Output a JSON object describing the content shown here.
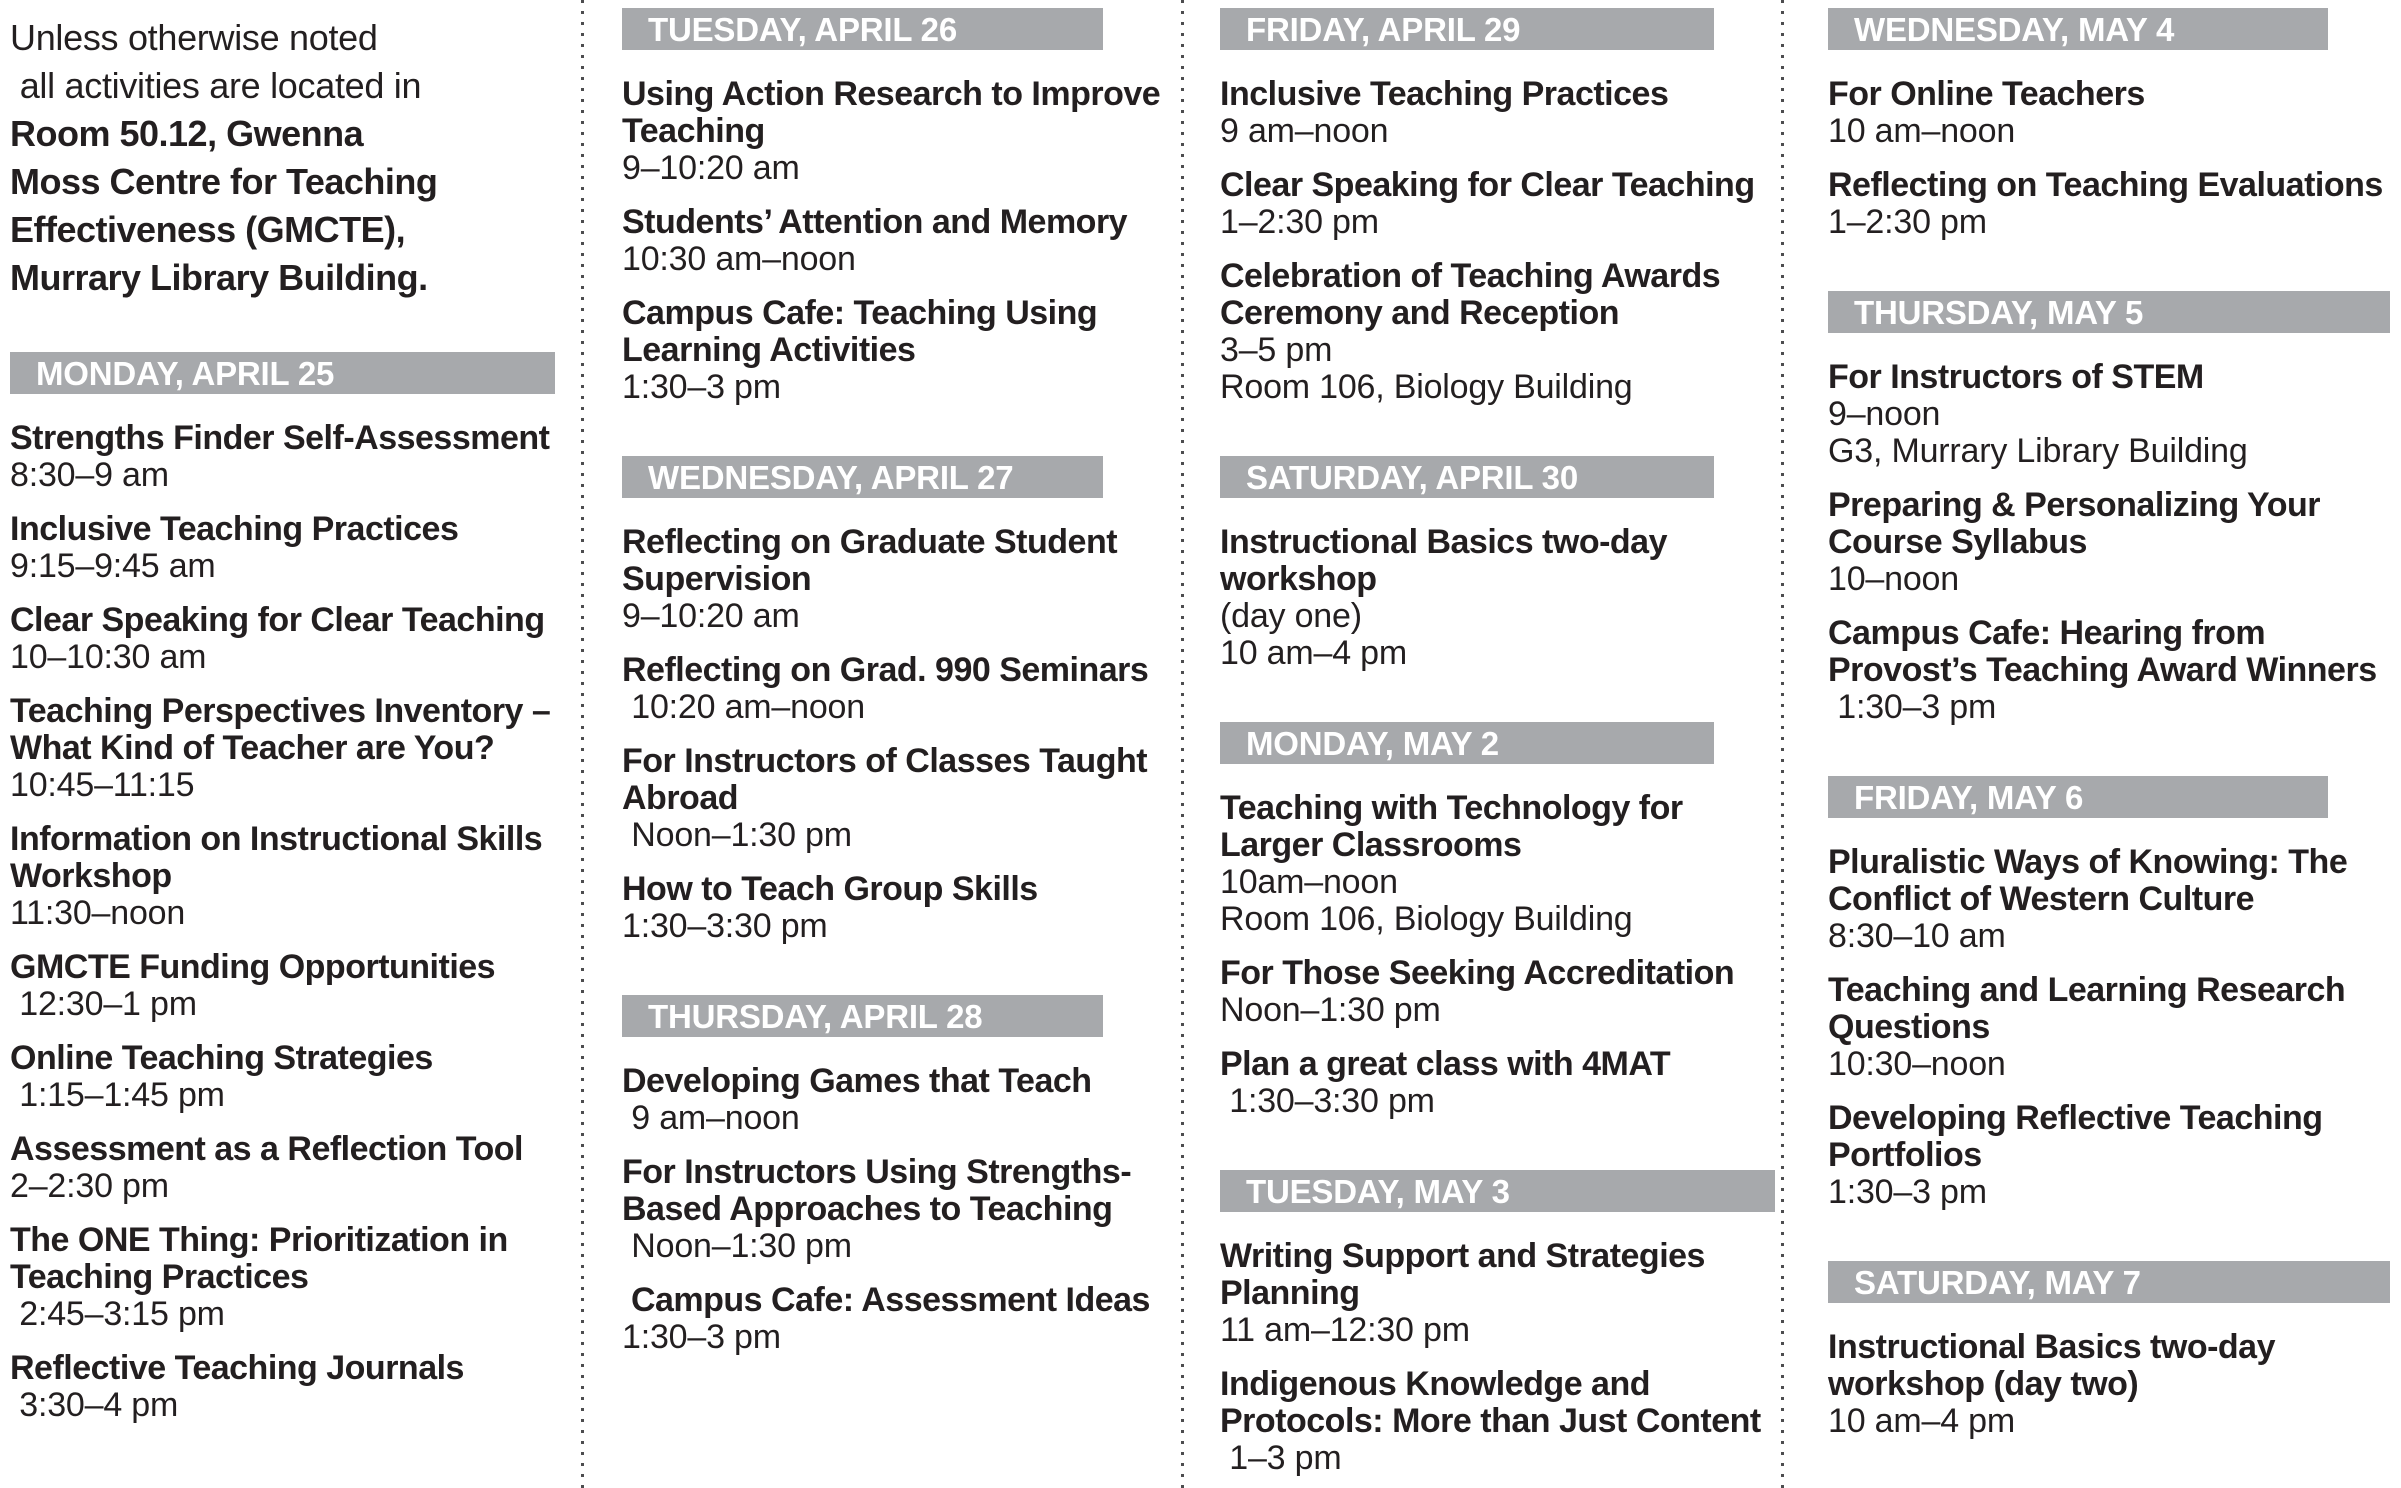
{
  "page": {
    "background_color": "#ffffff",
    "text_color": "#231f20",
    "bar_color": "#a7a9ac",
    "bar_text_color": "#ffffff"
  },
  "intro": {
    "regular": "Unless otherwise noted\n all activities are located in\n",
    "bold": "Room 50.12, Gwenna\nMoss Centre for Teaching\nEffectiveness (GMCTE),\nMurrary Library Building."
  },
  "columns": [
    {
      "has_intro": true,
      "sections": [
        {
          "header": "MONDAY, APRIL 25",
          "bar_full_width": true,
          "events": [
            {
              "title": "Strengths Finder Self-Assessment",
              "details": [
                "8:30–9 am"
              ]
            },
            {
              "title": "Inclusive Teaching Practices",
              "details": [
                "9:15–9:45 am"
              ]
            },
            {
              "title": "Clear Speaking for Clear Teaching",
              "details": [
                "10–10:30 am"
              ]
            },
            {
              "title": "Teaching Perspectives Inventory –\nWhat Kind of Teacher are You?",
              "details": [
                "10:45–11:15"
              ]
            },
            {
              "title": "Information on Instructional Skills\nWorkshop",
              "details": [
                "11:30–noon"
              ]
            },
            {
              "title": "GMCTE Funding Opportunities",
              "details": [
                " 12:30–1 pm"
              ]
            },
            {
              "title": "Online Teaching Strategies",
              "details": [
                " 1:15–1:45 pm"
              ]
            },
            {
              "title": "Assessment as a Reflection Tool",
              "details": [
                "2–2:30 pm"
              ]
            },
            {
              "title": "The ONE Thing: Prioritization in\nTeaching Practices",
              "details": [
                " 2:45–3:15 pm"
              ]
            },
            {
              "title": "Reflective Teaching Journals",
              "details": [
                " 3:30–4 pm"
              ]
            }
          ]
        }
      ]
    },
    {
      "has_intro": false,
      "sections": [
        {
          "header": "TUESDAY, APRIL 26",
          "bar_full_width": false,
          "events": [
            {
              "title": "Using Action Research to Improve\nTeaching",
              "details": [
                "9–10:20 am"
              ]
            },
            {
              "title": "Students’ Attention and Memory",
              "details": [
                "10:30 am–noon"
              ]
            },
            {
              "title": "Campus Cafe: Teaching Using\nLearning Activities",
              "details": [
                "1:30–3 pm"
              ]
            }
          ]
        },
        {
          "header": "WEDNESDAY, APRIL 27",
          "bar_full_width": false,
          "events": [
            {
              "title": "Reflecting on Graduate Student\nSupervision",
              "details": [
                "9–10:20 am"
              ]
            },
            {
              "title": "Reflecting on Grad. 990 Seminars",
              "details": [
                " 10:20 am–noon"
              ]
            },
            {
              "title": "For Instructors of Classes Taught\nAbroad",
              "details": [
                " Noon–1:30 pm"
              ]
            },
            {
              "title": "How to Teach Group Skills",
              "details": [
                "1:30–3:30 pm"
              ]
            }
          ]
        },
        {
          "header": "THURSDAY, APRIL 28",
          "bar_full_width": false,
          "events": [
            {
              "title": "Developing Games that Teach",
              "details": [
                " 9 am–noon"
              ]
            },
            {
              "title": "For Instructors Using Strengths-\nBased Approaches to Teaching",
              "details": [
                " Noon–1:30 pm"
              ]
            },
            {
              "title": " Campus Cafe: Assessment Ideas",
              "details": [
                "1:30–3 pm"
              ]
            }
          ]
        }
      ]
    },
    {
      "has_intro": false,
      "sections": [
        {
          "header": "FRIDAY, APRIL 29",
          "bar_full_width": false,
          "events": [
            {
              "title": "Inclusive Teaching Practices",
              "details": [
                "9 am–noon"
              ]
            },
            {
              "title": "Clear Speaking for Clear Teaching",
              "details": [
                "1–2:30 pm"
              ]
            },
            {
              "title": "Celebration of Teaching Awards\nCeremony and Reception",
              "details": [
                "3–5 pm",
                "Room 106, Biology Building"
              ]
            }
          ]
        },
        {
          "header": "SATURDAY, APRIL 30",
          "bar_full_width": false,
          "events": [
            {
              "title": "Instructional Basics two-day\nworkshop",
              "details": [
                "(day one)",
                "10 am–4 pm"
              ]
            }
          ]
        },
        {
          "header": "MONDAY, MAY 2",
          "bar_full_width": false,
          "events": [
            {
              "title": "Teaching with Technology for\nLarger Classrooms",
              "details": [
                "10am–noon",
                "Room 106, Biology Building"
              ]
            },
            {
              "title": "For Those Seeking Accreditation",
              "details": [
                "Noon–1:30 pm"
              ]
            },
            {
              "title": "Plan a great class with 4MAT",
              "details": [
                " 1:30–3:30 pm"
              ]
            }
          ]
        },
        {
          "header": "TUESDAY, MAY 3",
          "bar_full_width": true,
          "events": [
            {
              "title": "Writing Support and Strategies\nPlanning",
              "details": [
                "11 am–12:30 pm"
              ]
            },
            {
              "title": "Indigenous Knowledge and\nProtocols: More than Just Content",
              "details": [
                " 1–3 pm"
              ]
            }
          ]
        }
      ]
    },
    {
      "has_intro": false,
      "sections": [
        {
          "header": "WEDNESDAY, MAY 4",
          "bar_full_width": false,
          "events": [
            {
              "title": "For Online Teachers",
              "details": [
                "10 am–noon"
              ]
            },
            {
              "title": "Reflecting on Teaching Evaluations",
              "details": [
                "1–2:30 pm"
              ]
            }
          ]
        },
        {
          "header": "THURSDAY, MAY 5",
          "bar_full_width": true,
          "events": [
            {
              "title": "For Instructors of STEM",
              "details": [
                "9–noon",
                "G3, Murrary Library Building"
              ]
            },
            {
              "title": "Preparing & Personalizing Your\nCourse Syllabus",
              "details": [
                "10–noon"
              ]
            },
            {
              "title": "Campus Cafe: Hearing from\nProvost’s Teaching Award Winners",
              "details": [
                " 1:30–3 pm"
              ]
            }
          ]
        },
        {
          "header": "FRIDAY, MAY 6",
          "bar_full_width": false,
          "events": [
            {
              "title": "Pluralistic Ways of Knowing: The\nConflict of Western Culture",
              "details": [
                "8:30–10 am"
              ]
            },
            {
              "title": "Teaching and Learning Research\nQuestions",
              "details": [
                "10:30–noon"
              ]
            },
            {
              "title": "Developing Reflective Teaching\nPortfolios",
              "details": [
                "1:30–3 pm"
              ]
            }
          ]
        },
        {
          "header": "SATURDAY, MAY 7",
          "bar_full_width": true,
          "events": [
            {
              "title": "Instructional Basics two-day\nworkshop (day two)",
              "details": [
                "10 am–4 pm"
              ]
            }
          ]
        }
      ]
    }
  ]
}
